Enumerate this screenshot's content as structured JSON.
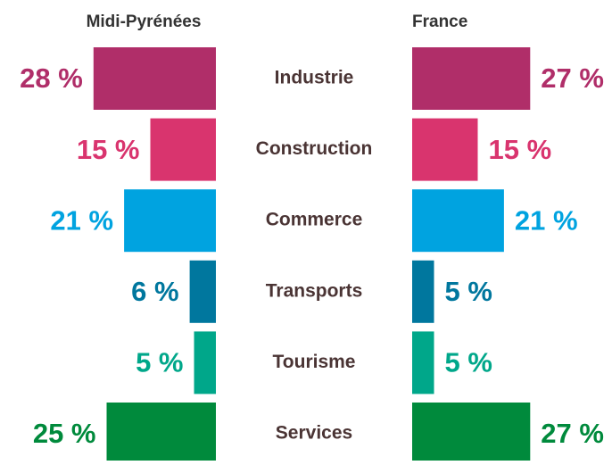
{
  "chart_data": {
    "type": "bar",
    "categories": [
      "Industrie",
      "Construction",
      "Commerce",
      "Transports",
      "Tourisme",
      "Services"
    ],
    "colors": [
      "#b02e69",
      "#d9346e",
      "#00a3e0",
      "#00779e",
      "#00a78a",
      "#008a3c"
    ],
    "series": [
      {
        "name": "Midi-Pyrénées",
        "values": [
          28,
          15,
          21,
          6,
          5,
          25
        ],
        "value_labels": [
          "28 %",
          "15 %",
          "21 %",
          "6 %",
          "5 %",
          "25 %"
        ]
      },
      {
        "name": "France",
        "values": [
          27,
          15,
          21,
          5,
          5,
          27
        ],
        "value_labels": [
          "27 %",
          "15 %",
          "21 %",
          "5 %",
          "5 %",
          "27 %"
        ]
      }
    ]
  }
}
